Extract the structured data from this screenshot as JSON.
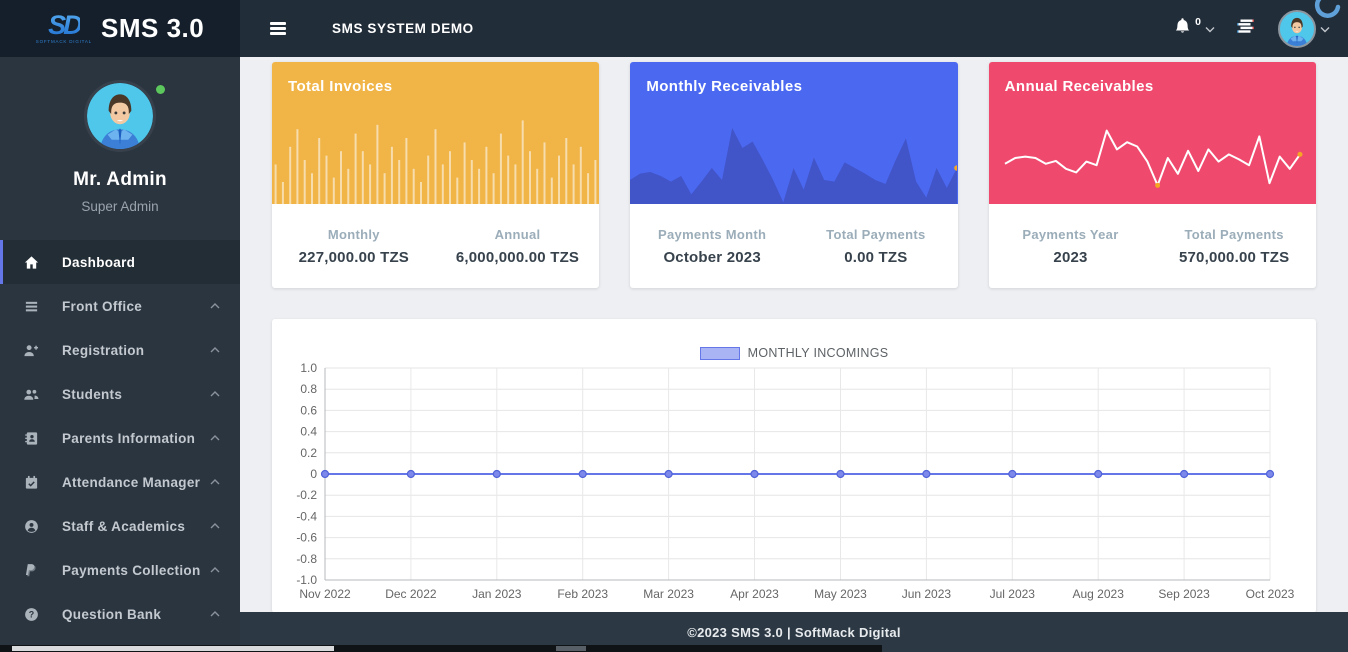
{
  "header": {
    "logo_mark": "SD",
    "logo_sub": "SOFTMACK DIGITAL",
    "logo_text": "SMS 3.0",
    "title": "SMS SYSTEM DEMO",
    "notification_count": "0"
  },
  "sidebar": {
    "user_name": "Mr. Admin",
    "user_role": "Super Admin",
    "items": [
      {
        "label": "Dashboard",
        "icon": "home",
        "active": true,
        "has_chevron": false
      },
      {
        "label": "Front Office",
        "icon": "bars",
        "active": false,
        "has_chevron": true
      },
      {
        "label": "Registration",
        "icon": "user-plus",
        "active": false,
        "has_chevron": true
      },
      {
        "label": "Students",
        "icon": "users",
        "active": false,
        "has_chevron": true
      },
      {
        "label": "Parents Information",
        "icon": "address-book",
        "active": false,
        "has_chevron": true
      },
      {
        "label": "Attendance Manager",
        "icon": "calendar-check",
        "active": false,
        "has_chevron": true
      },
      {
        "label": "Staff & Academics",
        "icon": "user-circle",
        "active": false,
        "has_chevron": true
      },
      {
        "label": "Payments Collection",
        "icon": "paypal",
        "active": false,
        "has_chevron": true
      },
      {
        "label": "Question Bank",
        "icon": "question-circle",
        "active": false,
        "has_chevron": true
      }
    ]
  },
  "cards": [
    {
      "title": "Total Invoices",
      "color": "#f0b447",
      "spark_type": "bar",
      "stats": [
        {
          "label": "Monthly",
          "value": "227,000.00 TZS"
        },
        {
          "label": "Annual",
          "value": "6,000,000.00 TZS"
        }
      ]
    },
    {
      "title": "Monthly Receivables",
      "color": "#4b68f0",
      "spark_type": "area",
      "stats": [
        {
          "label": "Payments Month",
          "value": "October 2023"
        },
        {
          "label": "Total Payments",
          "value": "0.00 TZS"
        }
      ]
    },
    {
      "title": "Annual Receivables",
      "color": "#ef4a6e",
      "spark_type": "line",
      "stats": [
        {
          "label": "Payments Year",
          "value": "2023"
        },
        {
          "label": "Total Payments",
          "value": "570,000.00 TZS"
        }
      ]
    }
  ],
  "sparklines": {
    "invoices_bars": [
      0.45,
      0.25,
      0.65,
      0.85,
      0.5,
      0.35,
      0.75,
      0.55,
      0.3,
      0.6,
      0.4,
      0.8,
      0.6,
      0.45,
      0.9,
      0.35,
      0.65,
      0.5,
      0.75,
      0.4,
      0.25,
      0.55,
      0.85,
      0.45,
      0.6,
      0.3,
      0.7,
      0.5,
      0.4,
      0.65,
      0.35,
      0.8,
      0.55,
      0.45,
      0.95,
      0.6,
      0.4,
      0.7,
      0.3,
      0.55,
      0.75,
      0.45,
      0.65,
      0.35,
      0.5
    ],
    "monthly_area": {
      "values": [
        0.3,
        0.38,
        0.4,
        0.35,
        0.28,
        0.35,
        0.12,
        0.28,
        0.45,
        0.3,
        0.95,
        0.7,
        0.78,
        0.55,
        0.3,
        0.02,
        0.45,
        0.18,
        0.58,
        0.3,
        0.28,
        0.52,
        0.45,
        0.38,
        0.3,
        0.25,
        0.55,
        0.82,
        0.28,
        0.08,
        0.45,
        0.2,
        0.45
      ],
      "fill": "#4154c8",
      "marker_indices": [
        32
      ]
    },
    "annual_line": {
      "values": [
        0.42,
        0.5,
        0.52,
        0.5,
        0.42,
        0.46,
        0.35,
        0.3,
        0.45,
        0.4,
        0.88,
        0.62,
        0.72,
        0.66,
        0.45,
        0.12,
        0.5,
        0.28,
        0.6,
        0.32,
        0.62,
        0.45,
        0.55,
        0.48,
        0.4,
        0.8,
        0.15,
        0.52,
        0.35,
        0.55
      ],
      "stroke": "#ffffff",
      "marker_indices": [
        15,
        29
      ]
    }
  },
  "chart_data": {
    "type": "line",
    "title": "MONTHLY INCOMINGS",
    "categories": [
      "Nov 2022",
      "Dec 2022",
      "Jan 2023",
      "Feb 2023",
      "Mar 2023",
      "Apr 2023",
      "May 2023",
      "Jun 2023",
      "Jul 2023",
      "Aug 2023",
      "Sep 2023",
      "Oct 2023"
    ],
    "values": [
      0,
      0,
      0,
      0,
      0,
      0,
      0,
      0,
      0,
      0,
      0,
      0
    ],
    "xlabel": "",
    "ylabel": "",
    "ylim": [
      -1.0,
      1.0
    ],
    "ytick_step": 0.2,
    "grid": true,
    "legend_position": "top",
    "line_color": "#6577e8",
    "point_fill": "#7c88ea",
    "point_stroke": "#5163d8",
    "legend_box_fill": "#a9b4f4"
  },
  "colors": {
    "accent": "#6577e8",
    "marker_orange": "#f5a623",
    "status_green": "#5cc75c",
    "sparkline_bar": "rgba(255,255,255,0.55)"
  },
  "footer": {
    "text": "©2023 SMS 3.0 | SoftMack Digital"
  }
}
